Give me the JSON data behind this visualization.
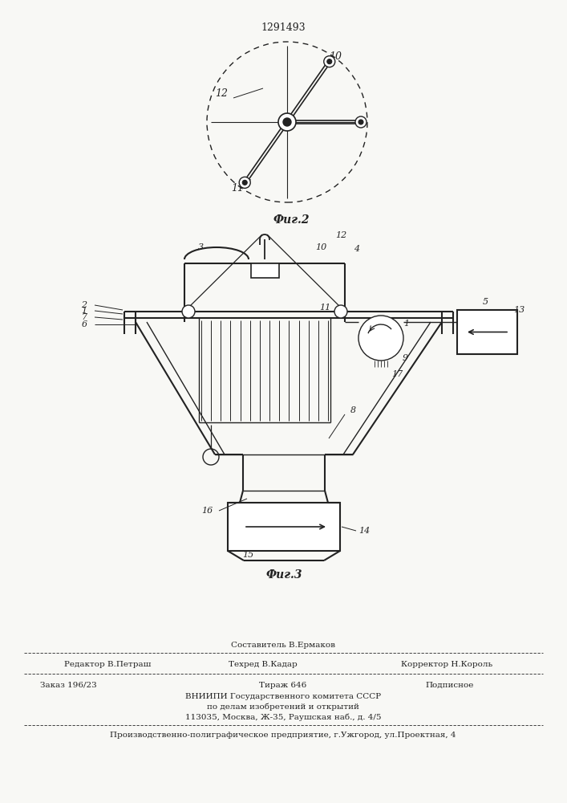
{
  "patent_number": "1291493",
  "fig2_caption": "Фиг.2",
  "fig3_caption": "Фиг.3",
  "footer_line1_col1": "Редактор В.Петраш",
  "footer_line1_col2": "Составитель В.Ермаков",
  "footer_line1_col2b": "Техред В.Кадар",
  "footer_line1_col3": "Корректор Н.Король",
  "footer_line2_col1": "Заказ 196/23",
  "footer_line2_col2": "Тираж 646",
  "footer_line2_col3": "Подписное",
  "footer_line3": "ВНИИПИ Государственного комитета СССР",
  "footer_line4": "по делам изобретений и открытий",
  "footer_line5": "113035, Москва, Ж-35, Раушская наб., д. 4/5",
  "footer_line6": "Производственно-полиграфическое предприятие, г.Ужгород, ул.Проектная, 4",
  "bg_color": "#f8f8f5",
  "line_color": "#222222"
}
